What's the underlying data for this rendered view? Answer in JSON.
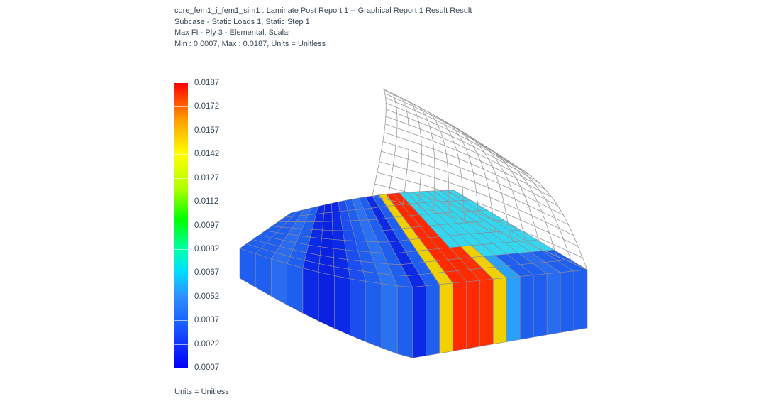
{
  "header": {
    "line1": "core_fem1_i_fem1_sim1 : Laminate Post Report 1 -- Graphical Report 1 Result Result",
    "line2": "Subcase - Static Loads 1, Static Step 1",
    "line3": "Max FI - Ply 3 - Elemental, Scalar",
    "line4": "Min : 0.0007, Max : 0.0187, Units = Unitless"
  },
  "legend": {
    "labels": [
      "0.0187",
      "0.0172",
      "0.0157",
      "0.0142",
      "0.0127",
      "0.0112",
      "0.0097",
      "0.0082",
      "0.0067",
      "0.0052",
      "0.0037",
      "0.0022",
      "0.0007"
    ],
    "min": 0.0007,
    "max": 0.0187,
    "colors": {
      "min": "#0000ff",
      "max": "#ff0000"
    }
  },
  "units_label": "Units = Unitless",
  "model": {
    "stripe_colors": [
      "#1f5ff0",
      "#1f5ff0",
      "#2a6cf0",
      "#1f5ff0",
      "#0c2ae6",
      "#0a22e0",
      "#0c2ae6",
      "#1a4ef0",
      "#1f5ff0",
      "#2a72f2",
      "#1f5ff0",
      "#0c2ae6",
      "#1f5ff0",
      "#f0d000",
      "#ff2a00",
      "#ff2a00",
      "#ff3000",
      "#f0d000",
      "#2aa0f8",
      "#1f5ff0",
      "#1f5ff0",
      "#2a6cf0",
      "#1f5ff0",
      "#1f5ff0"
    ],
    "top_right_color": "#33d8f0",
    "edge_color": "#8a8a9a",
    "wire_color": "#9a9a9a"
  }
}
